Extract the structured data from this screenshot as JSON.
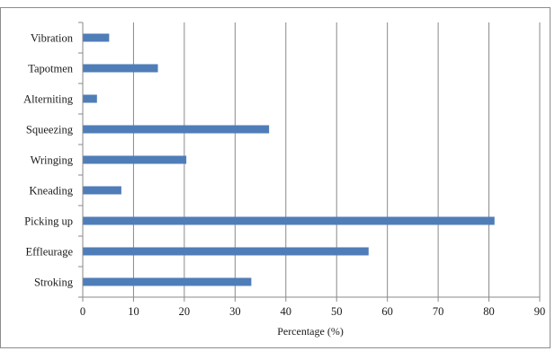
{
  "chart_data": {
    "type": "bar",
    "orientation": "horizontal",
    "categories": [
      "Vibration",
      "Tapotmen",
      "Alterniting",
      "Squeezing",
      "Wringing",
      "Kneading",
      "Picking up",
      "Effleurage",
      "Stroking"
    ],
    "values": [
      5.2,
      14.8,
      2.8,
      36.7,
      20.4,
      7.6,
      81.1,
      56.3,
      33.2
    ],
    "xlabel": "Percentage (%)",
    "ylabel": "",
    "xlim": [
      0,
      90
    ],
    "xticks": [
      0,
      10,
      20,
      30,
      40,
      50,
      60,
      70,
      80,
      90
    ],
    "grid": "vertical",
    "legend": "none",
    "bar_color": "#4f7db8",
    "grid_color": "#8a8a8a",
    "axis_color": "#8a8a8a"
  }
}
